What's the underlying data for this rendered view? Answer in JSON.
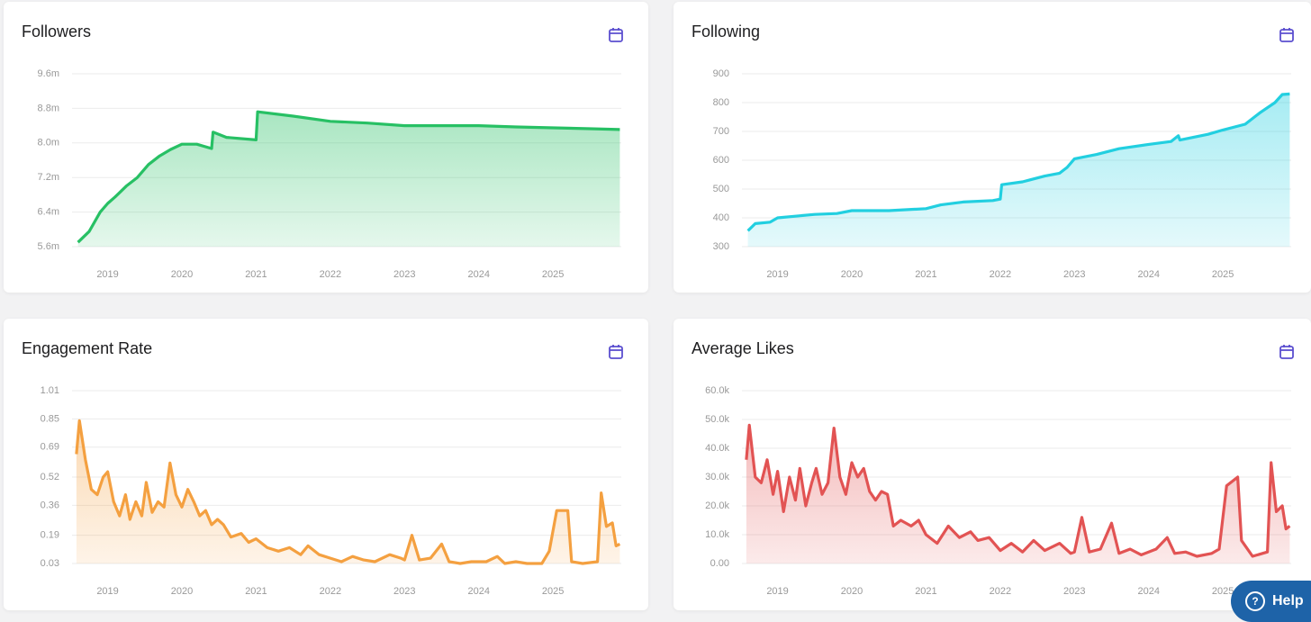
{
  "chart_data": [
    {
      "type": "area",
      "title": "Followers",
      "color": "#27c064",
      "x": [
        2018.6,
        2018.75,
        2018.9,
        2019.0,
        2019.1,
        2019.25,
        2019.4,
        2019.55,
        2019.7,
        2019.85,
        2020.0,
        2020.2,
        2020.4,
        2020.42,
        2020.6,
        2021.0,
        2021.02,
        2021.5,
        2022.0,
        2022.5,
        2023.0,
        2023.5,
        2024.0,
        2024.5,
        2025.0,
        2025.5,
        2025.9
      ],
      "series": [
        {
          "name": "Followers",
          "color": "#27c064",
          "values": [
            5700000,
            5950000,
            6400000,
            6600000,
            6750000,
            7000000,
            7200000,
            7500000,
            7700000,
            7850000,
            7970000,
            7970000,
            7870000,
            8250000,
            8130000,
            8070000,
            8720000,
            8620000,
            8500000,
            8460000,
            8400000,
            8400000,
            8400000,
            8370000,
            8350000,
            8330000,
            8310000
          ]
        }
      ],
      "xlim": [
        2018.52,
        2025.92
      ],
      "xticks": [
        2019,
        2020,
        2021,
        2022,
        2023,
        2024,
        2025
      ],
      "ylim": [
        5600000,
        9600000
      ],
      "yticks": [
        {
          "value": 5600000,
          "label": "5.6m"
        },
        {
          "value": 6400000,
          "label": "6.4m"
        },
        {
          "value": 7200000,
          "label": "7.2m"
        },
        {
          "value": 8000000,
          "label": "8.0m"
        },
        {
          "value": 8800000,
          "label": "8.8m"
        },
        {
          "value": 9600000,
          "label": "9.6m"
        }
      ],
      "grid": true
    },
    {
      "type": "area",
      "title": "Following",
      "color": "#22cfe0",
      "x": [
        2018.6,
        2018.7,
        2018.9,
        2019.0,
        2019.5,
        2019.8,
        2020.0,
        2020.5,
        2021.0,
        2021.2,
        2021.5,
        2021.9,
        2022.0,
        2022.02,
        2022.3,
        2022.6,
        2022.8,
        2022.9,
        2023.0,
        2023.3,
        2023.6,
        2024.0,
        2024.3,
        2024.4,
        2024.42,
        2024.8,
        2025.0,
        2025.3,
        2025.5,
        2025.7,
        2025.8,
        2025.9
      ],
      "series": [
        {
          "name": "Following",
          "color": "#22cfe0",
          "values": [
            355,
            380,
            385,
            400,
            412,
            415,
            425,
            425,
            432,
            445,
            455,
            460,
            465,
            515,
            525,
            545,
            555,
            575,
            605,
            620,
            640,
            655,
            665,
            685,
            670,
            690,
            705,
            725,
            765,
            800,
            828,
            830
          ]
        }
      ],
      "xlim": [
        2018.52,
        2025.92
      ],
      "xticks": [
        2019,
        2020,
        2021,
        2022,
        2023,
        2024,
        2025
      ],
      "ylim": [
        300,
        900
      ],
      "yticks": [
        300,
        400,
        500,
        600,
        700,
        800,
        900
      ],
      "grid": true
    },
    {
      "type": "area",
      "title": "Engagement Rate",
      "color": "#f4a040",
      "x": [
        2018.58,
        2018.62,
        2018.7,
        2018.78,
        2018.86,
        2018.94,
        2019.0,
        2019.08,
        2019.16,
        2019.24,
        2019.3,
        2019.38,
        2019.46,
        2019.52,
        2019.6,
        2019.68,
        2019.76,
        2019.84,
        2019.92,
        2020.0,
        2020.08,
        2020.16,
        2020.24,
        2020.32,
        2020.4,
        2020.48,
        2020.56,
        2020.66,
        2020.8,
        2020.9,
        2021.0,
        2021.15,
        2021.3,
        2021.45,
        2021.6,
        2021.7,
        2021.85,
        2022.0,
        2022.15,
        2022.3,
        2022.45,
        2022.6,
        2022.8,
        2022.95,
        2023.0,
        2023.1,
        2023.2,
        2023.35,
        2023.5,
        2023.6,
        2023.75,
        2023.9,
        2024.1,
        2024.25,
        2024.35,
        2024.5,
        2024.65,
        2024.85,
        2024.95,
        2025.05,
        2025.2,
        2025.25,
        2025.4,
        2025.6,
        2025.65,
        2025.72,
        2025.8,
        2025.85,
        2025.9
      ],
      "series": [
        {
          "name": "Engagement Rate",
          "color": "#f4a040",
          "values": [
            0.65,
            0.84,
            0.62,
            0.45,
            0.42,
            0.52,
            0.55,
            0.38,
            0.3,
            0.42,
            0.28,
            0.38,
            0.3,
            0.49,
            0.32,
            0.38,
            0.35,
            0.6,
            0.42,
            0.35,
            0.45,
            0.38,
            0.3,
            0.33,
            0.25,
            0.28,
            0.25,
            0.18,
            0.2,
            0.15,
            0.17,
            0.12,
            0.1,
            0.12,
            0.08,
            0.13,
            0.08,
            0.06,
            0.04,
            0.07,
            0.05,
            0.04,
            0.08,
            0.06,
            0.05,
            0.19,
            0.05,
            0.06,
            0.14,
            0.04,
            0.03,
            0.04,
            0.04,
            0.07,
            0.03,
            0.04,
            0.03,
            0.03,
            0.1,
            0.33,
            0.33,
            0.04,
            0.03,
            0.04,
            0.43,
            0.24,
            0.26,
            0.13,
            0.14
          ]
        }
      ],
      "xlim": [
        2018.52,
        2025.92
      ],
      "xticks": [
        2019,
        2020,
        2021,
        2022,
        2023,
        2024,
        2025
      ],
      "ylim": [
        0.03,
        1.01
      ],
      "yticks": [
        0.03,
        0.19,
        0.36,
        0.52,
        0.69,
        0.85,
        1.01
      ],
      "grid": true
    },
    {
      "type": "area",
      "title": "Average Likes",
      "color": "#e25353",
      "x": [
        2018.58,
        2018.62,
        2018.7,
        2018.78,
        2018.86,
        2018.94,
        2019.0,
        2019.08,
        2019.16,
        2019.24,
        2019.3,
        2019.38,
        2019.46,
        2019.52,
        2019.6,
        2019.68,
        2019.76,
        2019.84,
        2019.92,
        2020.0,
        2020.08,
        2020.16,
        2020.24,
        2020.32,
        2020.4,
        2020.48,
        2020.56,
        2020.66,
        2020.8,
        2020.9,
        2021.0,
        2021.15,
        2021.3,
        2021.45,
        2021.6,
        2021.7,
        2021.85,
        2022.0,
        2022.15,
        2022.3,
        2022.45,
        2022.6,
        2022.8,
        2022.95,
        2023.0,
        2023.1,
        2023.2,
        2023.35,
        2023.5,
        2023.6,
        2023.75,
        2023.9,
        2024.1,
        2024.25,
        2024.35,
        2024.5,
        2024.65,
        2024.85,
        2024.95,
        2025.05,
        2025.2,
        2025.25,
        2025.4,
        2025.6,
        2025.65,
        2025.72,
        2025.8,
        2025.85,
        2025.9
      ],
      "series": [
        {
          "name": "Average Likes",
          "color": "#e25353",
          "values": [
            36000,
            48000,
            30000,
            28000,
            36000,
            24000,
            32000,
            18000,
            30000,
            22000,
            33000,
            20000,
            28000,
            33000,
            24000,
            28000,
            47000,
            30000,
            24000,
            35000,
            30000,
            33000,
            25000,
            22000,
            25000,
            24000,
            13000,
            15000,
            13000,
            15000,
            10000,
            7000,
            13000,
            9000,
            11000,
            8000,
            9000,
            4500,
            7000,
            4000,
            8000,
            4500,
            7000,
            3500,
            4000,
            16000,
            4000,
            5000,
            14000,
            3500,
            5000,
            3000,
            5000,
            9000,
            3500,
            4000,
            2500,
            3500,
            5000,
            27000,
            30000,
            8000,
            2500,
            4000,
            35000,
            18000,
            20000,
            12000,
            13000
          ]
        }
      ],
      "xlim": [
        2018.52,
        2025.92
      ],
      "xticks": [
        2019,
        2020,
        2021,
        2022,
        2023,
        2024,
        2025
      ],
      "ylim": [
        0,
        60000
      ],
      "yticks": [
        {
          "value": 0,
          "label": "0.00"
        },
        {
          "value": 10000,
          "label": "10.0k"
        },
        {
          "value": 20000,
          "label": "20.0k"
        },
        {
          "value": 30000,
          "label": "30.0k"
        },
        {
          "value": 40000,
          "label": "40.0k"
        },
        {
          "value": 50000,
          "label": "50.0k"
        },
        {
          "value": 60000,
          "label": "60.0k"
        }
      ],
      "grid": true
    }
  ],
  "help_label": "Help"
}
